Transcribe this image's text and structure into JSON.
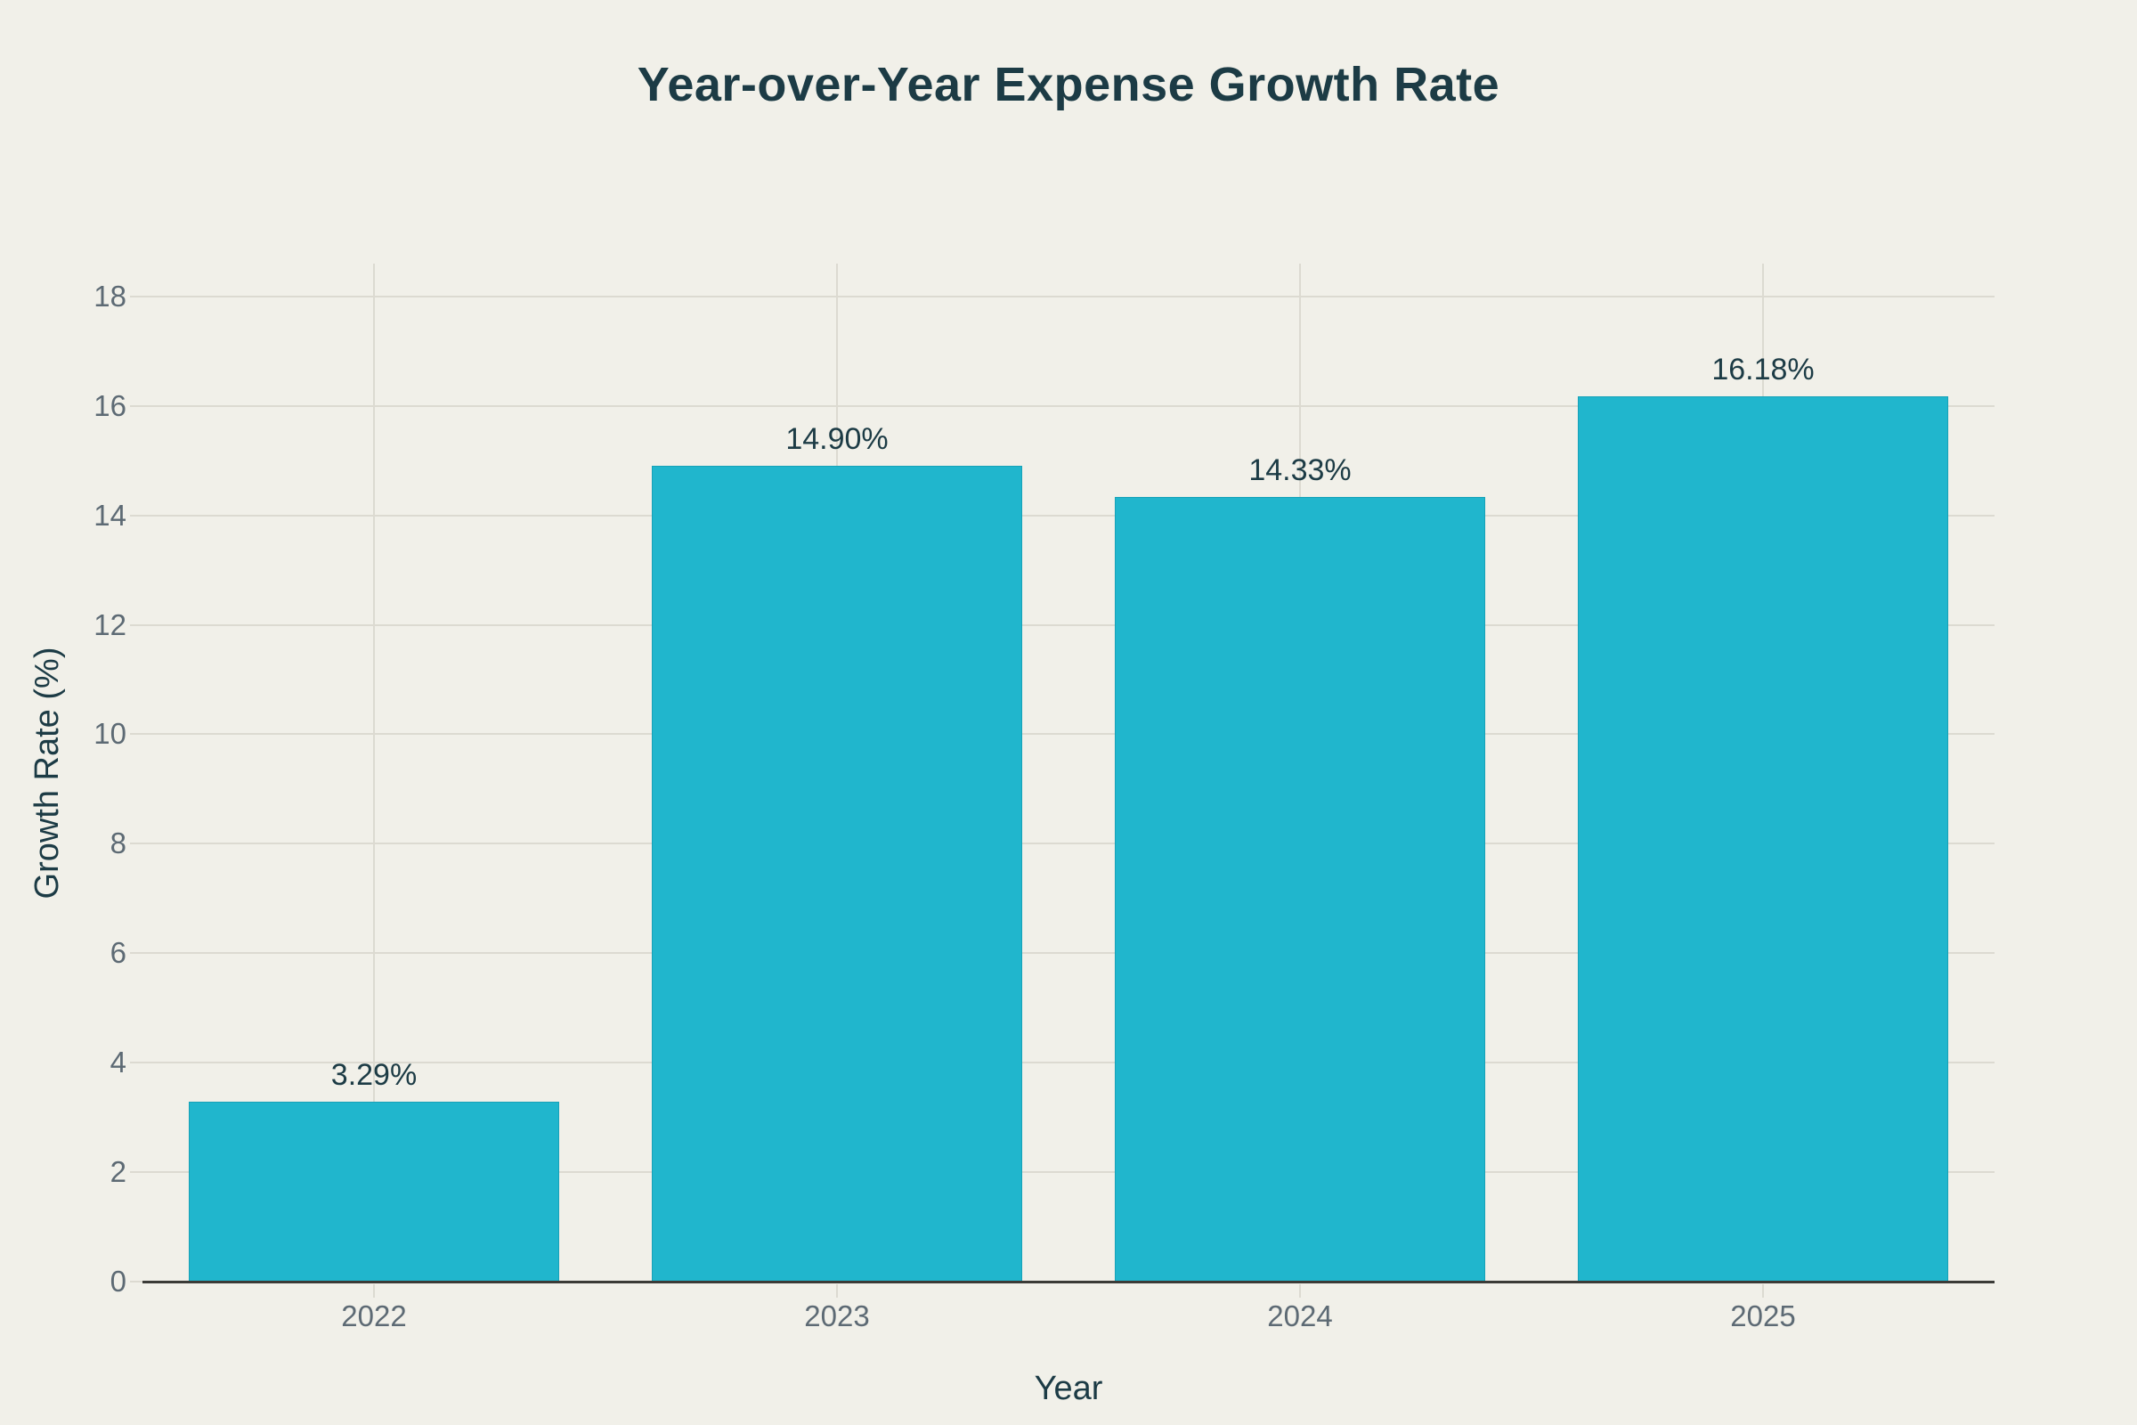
{
  "chart_data": {
    "type": "bar",
    "title": "Year-over-Year Expense Growth Rate",
    "xlabel": "Year",
    "ylabel": "Growth Rate (%)",
    "categories": [
      "2022",
      "2023",
      "2024",
      "2025"
    ],
    "values": [
      3.29,
      14.9,
      14.33,
      16.18
    ],
    "value_labels": [
      "3.29%",
      "14.90%",
      "14.33%",
      "16.18%"
    ],
    "y_ticks": [
      0,
      2,
      4,
      6,
      8,
      10,
      12,
      14,
      16,
      18
    ],
    "ylim": [
      0,
      18.6
    ],
    "grid": true,
    "legend_position": "none",
    "colors": {
      "background": "#f1f0e9",
      "bar": "#20b6cd",
      "bar_border": "#17a2b8",
      "title_text": "#1c3b45",
      "value_label_text": "#1c3b45",
      "axis_title_text": "#1c3b45",
      "tick_text": "#5d6a74",
      "gridline": "#dcdad1",
      "axis_line": "#3b3b37"
    }
  }
}
